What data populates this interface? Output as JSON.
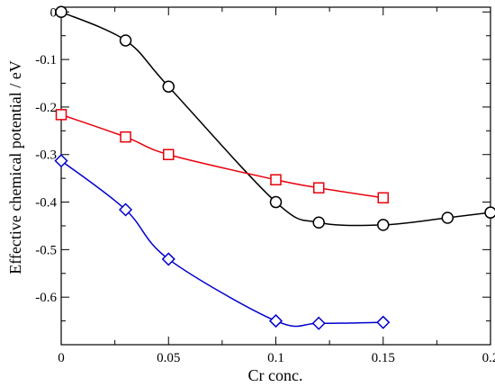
{
  "chart_data": {
    "type": "scatter",
    "xlabel": "Cr conc.",
    "ylabel": "Effective chemical potential / eV",
    "xlim": [
      0,
      0.2
    ],
    "ylim": [
      -0.7,
      0.01
    ],
    "xticks": [
      "0",
      "0.05",
      "0.1",
      "0.15",
      "0.2"
    ],
    "yticks": [
      "0",
      "-0.1",
      "-0.2",
      "-0.3",
      "-0.4",
      "-0.5",
      "-0.6"
    ],
    "grid": false,
    "series": [
      {
        "color": "#000000",
        "marker": "circle",
        "x": [
          0,
          0.03,
          0.05,
          0.1,
          0.12,
          0.15,
          0.18,
          0.2
        ],
        "y": [
          0.0,
          -0.06,
          -0.157,
          -0.4,
          -0.443,
          -0.448,
          -0.433,
          -0.422
        ]
      },
      {
        "color": "#e8000b",
        "marker": "square",
        "x": [
          0,
          0.03,
          0.05,
          0.1,
          0.12,
          0.15
        ],
        "y": [
          -0.216,
          -0.263,
          -0.3,
          -0.353,
          -0.37,
          -0.391
        ]
      },
      {
        "color": "#0000cc",
        "marker": "diamond",
        "x": [
          0,
          0.03,
          0.05,
          0.1,
          0.12,
          0.15
        ],
        "y": [
          -0.313,
          -0.416,
          -0.52,
          -0.65,
          -0.655,
          -0.653
        ]
      }
    ]
  }
}
